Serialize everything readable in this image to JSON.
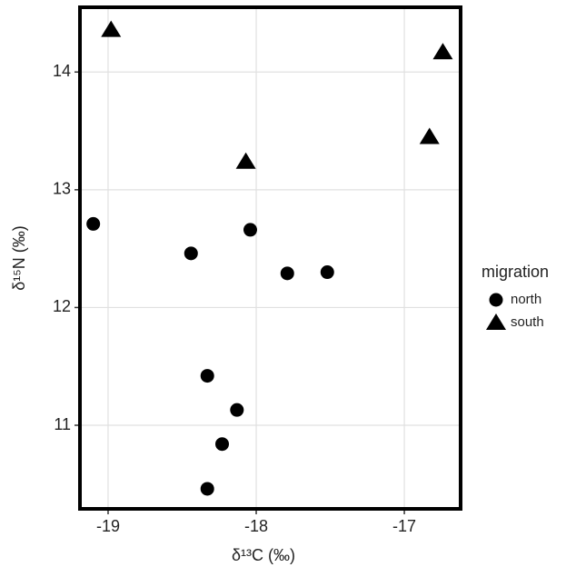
{
  "chart_data": {
    "type": "scatter",
    "x_label": "δ¹³C (‰)",
    "y_label": "δ¹⁵N (‰)",
    "legend_title": "migration",
    "legend_position": "right",
    "xlim": [
      -19.19,
      -16.62
    ],
    "xticks": [
      -19,
      -18,
      -17
    ],
    "ylim": [
      10.29,
      14.55
    ],
    "yticks": [
      11,
      12,
      13,
      14
    ],
    "grid": true,
    "series": [
      {
        "name": "north",
        "marker": "circle",
        "color": "#000000",
        "x": [
          -19.1,
          -18.44,
          -18.04,
          -17.79,
          -17.52,
          -18.33,
          -18.13,
          -18.23,
          -18.33
        ],
        "values": [
          12.71,
          12.46,
          12.66,
          12.29,
          12.3,
          11.42,
          11.13,
          10.84,
          10.46
        ]
      },
      {
        "name": "south",
        "marker": "triangle",
        "color": "#000000",
        "x": [
          -18.98,
          -18.07,
          -16.83,
          -16.74
        ],
        "values": [
          14.36,
          13.24,
          13.45,
          14.17
        ]
      }
    ]
  }
}
